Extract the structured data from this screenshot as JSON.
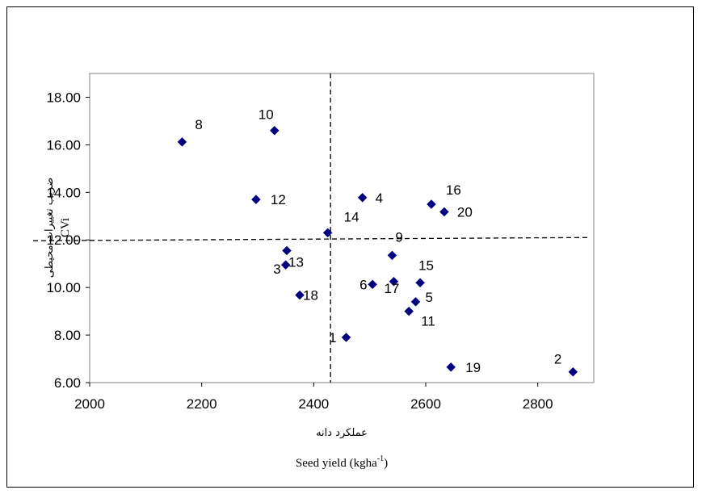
{
  "chart_data": {
    "type": "scatter",
    "xlabel_fa": "عملکرد دانه",
    "xlabel_en": "Seed yield (kgha",
    "xlabel_en_sup": "-1",
    "xlabel_en_end": ")",
    "ylabel_fa": "ضریب تغییرات محیطی",
    "ylabel_en": "CVi",
    "xlim": [
      2000,
      2900
    ],
    "ylim": [
      6.0,
      19.0
    ],
    "x_ticks": [
      "2000",
      "2200",
      "2400",
      "2600",
      "2800"
    ],
    "x_tick_values": [
      2000,
      2200,
      2400,
      2600,
      2800
    ],
    "y_ticks": [
      "6.00",
      "8.00",
      "10.00",
      "12.00",
      "14.00",
      "16.00",
      "18.00"
    ],
    "y_tick_values": [
      6,
      8,
      10,
      12,
      14,
      16,
      18
    ],
    "marker_color": "#000080",
    "reference_lines": {
      "x": 2430,
      "y": 12.0
    },
    "points": [
      {
        "label": "1",
        "x": 2458,
        "y": 7.9
      },
      {
        "label": "2",
        "x": 2863,
        "y": 6.45
      },
      {
        "label": "3",
        "x": 2350,
        "y": 10.95
      },
      {
        "label": "4",
        "x": 2487,
        "y": 13.78
      },
      {
        "label": "5",
        "x": 2582,
        "y": 9.4
      },
      {
        "label": "6",
        "x": 2505,
        "y": 10.13
      },
      {
        "label": "8",
        "x": 2165,
        "y": 16.12
      },
      {
        "label": "9",
        "x": 2540,
        "y": 11.35
      },
      {
        "label": "10",
        "x": 2330,
        "y": 16.6
      },
      {
        "label": "11",
        "x": 2570,
        "y": 9.0
      },
      {
        "label": "12",
        "x": 2297,
        "y": 13.7
      },
      {
        "label": "13",
        "x": 2352,
        "y": 11.55
      },
      {
        "label": "14",
        "x": 2425,
        "y": 12.3
      },
      {
        "label": "15",
        "x": 2590,
        "y": 10.2
      },
      {
        "label": "16",
        "x": 2610,
        "y": 13.5
      },
      {
        "label": "17",
        "x": 2543,
        "y": 10.25
      },
      {
        "label": "18",
        "x": 2375,
        "y": 9.68
      },
      {
        "label": "19",
        "x": 2645,
        "y": 6.65
      },
      {
        "label": "20",
        "x": 2633,
        "y": 13.18
      }
    ]
  }
}
